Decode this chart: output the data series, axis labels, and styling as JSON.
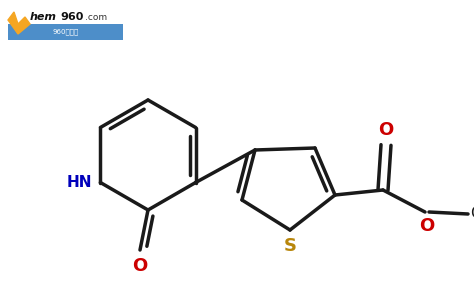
{
  "background_color": "#ffffff",
  "bond_color": "#1a1a1a",
  "hn_color": "#0000bb",
  "o_color": "#cc0000",
  "s_color": "#b8860b",
  "text_color": "#1a1a1a",
  "line_width": 2.5,
  "figsize": [
    4.74,
    2.93
  ],
  "dpi": 100,
  "xlim": [
    0,
    474
  ],
  "ylim": [
    0,
    293
  ]
}
